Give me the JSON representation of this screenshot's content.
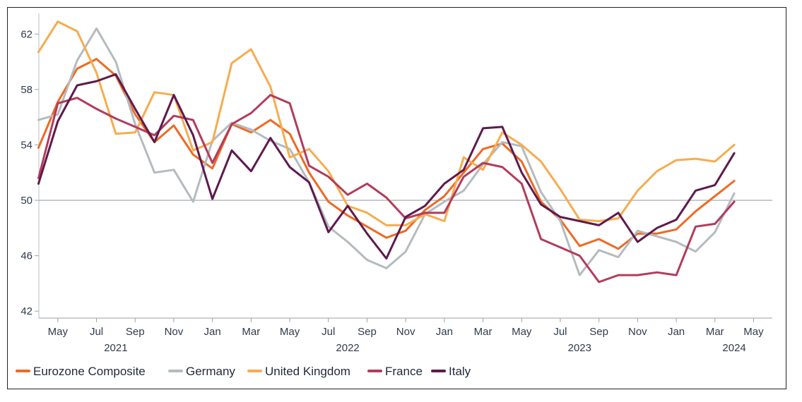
{
  "chart_data": {
    "type": "line",
    "title": "",
    "xlabel": "",
    "ylabel": "",
    "ylim": [
      41.5,
      64
    ],
    "y_ticks": [
      42,
      46,
      50,
      54,
      58,
      62
    ],
    "reference_line": 50,
    "grid": false,
    "legend_position": "bottom-left",
    "x": [
      "2021-04",
      "2021-05",
      "2021-06",
      "2021-07",
      "2021-08",
      "2021-09",
      "2021-10",
      "2021-11",
      "2021-12",
      "2022-01",
      "2022-02",
      "2022-03",
      "2022-04",
      "2022-05",
      "2022-06",
      "2022-07",
      "2022-08",
      "2022-09",
      "2022-10",
      "2022-11",
      "2022-12",
      "2023-01",
      "2023-02",
      "2023-03",
      "2023-04",
      "2023-05",
      "2023-06",
      "2023-07",
      "2023-08",
      "2023-09",
      "2023-10",
      "2023-11",
      "2023-12",
      "2024-01",
      "2024-02",
      "2024-03",
      "2024-04",
      "2024-05"
    ],
    "x_tick_labels": [
      "May",
      "Jul",
      "Sep",
      "Nov",
      "Jan",
      "Mar",
      "May",
      "Jul",
      "Sep",
      "Nov",
      "Jan",
      "Mar",
      "May",
      "Jul",
      "Sep",
      "Nov",
      "Jan",
      "Mar",
      "May"
    ],
    "x_tick_months": [
      "2021-05",
      "2021-07",
      "2021-09",
      "2021-11",
      "2022-01",
      "2022-03",
      "2022-05",
      "2022-07",
      "2022-09",
      "2022-11",
      "2023-01",
      "2023-03",
      "2023-05",
      "2023-07",
      "2023-09",
      "2023-11",
      "2024-01",
      "2024-03",
      "2024-05"
    ],
    "year_labels": [
      {
        "label": "2021",
        "month": "2021-08"
      },
      {
        "label": "2022",
        "month": "2022-08"
      },
      {
        "label": "2023",
        "month": "2023-08"
      },
      {
        "label": "2024",
        "month": "2024-04"
      }
    ],
    "series": [
      {
        "name": "Eurozone Composite",
        "color": "#ee6a24",
        "values": [
          53.8,
          57.1,
          59.5,
          60.2,
          59.0,
          56.2,
          54.2,
          55.4,
          53.3,
          52.3,
          55.5,
          54.9,
          55.8,
          54.8,
          52.0,
          49.9,
          48.9,
          48.1,
          47.3,
          47.8,
          49.3,
          50.3,
          52.0,
          53.7,
          54.1,
          52.8,
          49.9,
          48.6,
          46.7,
          47.2,
          46.5,
          47.6,
          47.6,
          47.9,
          49.2,
          50.3,
          51.4,
          null
        ]
      },
      {
        "name": "Germany",
        "color": "#b4bbbf",
        "values": [
          55.8,
          56.2,
          60.1,
          62.4,
          60.0,
          55.5,
          52.0,
          52.2,
          49.9,
          54.3,
          55.6,
          55.1,
          54.3,
          53.7,
          51.3,
          48.1,
          47.0,
          45.7,
          45.1,
          46.3,
          49.0,
          49.9,
          50.7,
          52.6,
          54.2,
          53.9,
          50.6,
          48.5,
          44.6,
          46.4,
          45.9,
          47.8,
          47.4,
          47.0,
          46.3,
          47.7,
          50.5,
          null
        ]
      },
      {
        "name": "United Kingdom",
        "color": "#f6ac4f",
        "values": [
          60.7,
          62.9,
          62.2,
          59.2,
          54.8,
          54.9,
          57.8,
          57.6,
          53.6,
          54.2,
          59.9,
          60.9,
          58.2,
          53.1,
          53.7,
          52.1,
          49.6,
          49.1,
          48.2,
          48.2,
          49.0,
          48.5,
          53.1,
          52.2,
          54.9,
          54.0,
          52.8,
          50.8,
          48.6,
          48.5,
          48.7,
          50.7,
          52.1,
          52.9,
          53.0,
          52.8,
          54.0,
          null
        ]
      },
      {
        "name": "France",
        "color": "#b23c5c",
        "values": [
          51.6,
          57.0,
          57.4,
          56.6,
          55.9,
          55.3,
          54.7,
          56.1,
          55.8,
          52.7,
          55.5,
          56.3,
          57.6,
          57.0,
          52.5,
          51.7,
          50.4,
          51.2,
          50.2,
          48.7,
          49.1,
          49.1,
          51.7,
          52.7,
          52.4,
          51.2,
          47.2,
          46.6,
          46.0,
          44.1,
          44.6,
          44.6,
          44.8,
          44.6,
          48.1,
          48.3,
          49.9,
          null
        ]
      },
      {
        "name": "Italy",
        "color": "#5e1a4c",
        "values": [
          51.2,
          55.7,
          58.3,
          58.6,
          59.1,
          56.6,
          54.2,
          57.6,
          54.7,
          50.1,
          53.6,
          52.1,
          54.5,
          52.4,
          51.3,
          47.7,
          49.6,
          47.6,
          45.8,
          48.8,
          49.6,
          51.2,
          52.2,
          55.2,
          55.3,
          52.0,
          49.7,
          48.8,
          48.5,
          48.2,
          49.1,
          47.0,
          48.0,
          48.6,
          50.7,
          51.1,
          53.4,
          null
        ]
      }
    ]
  }
}
